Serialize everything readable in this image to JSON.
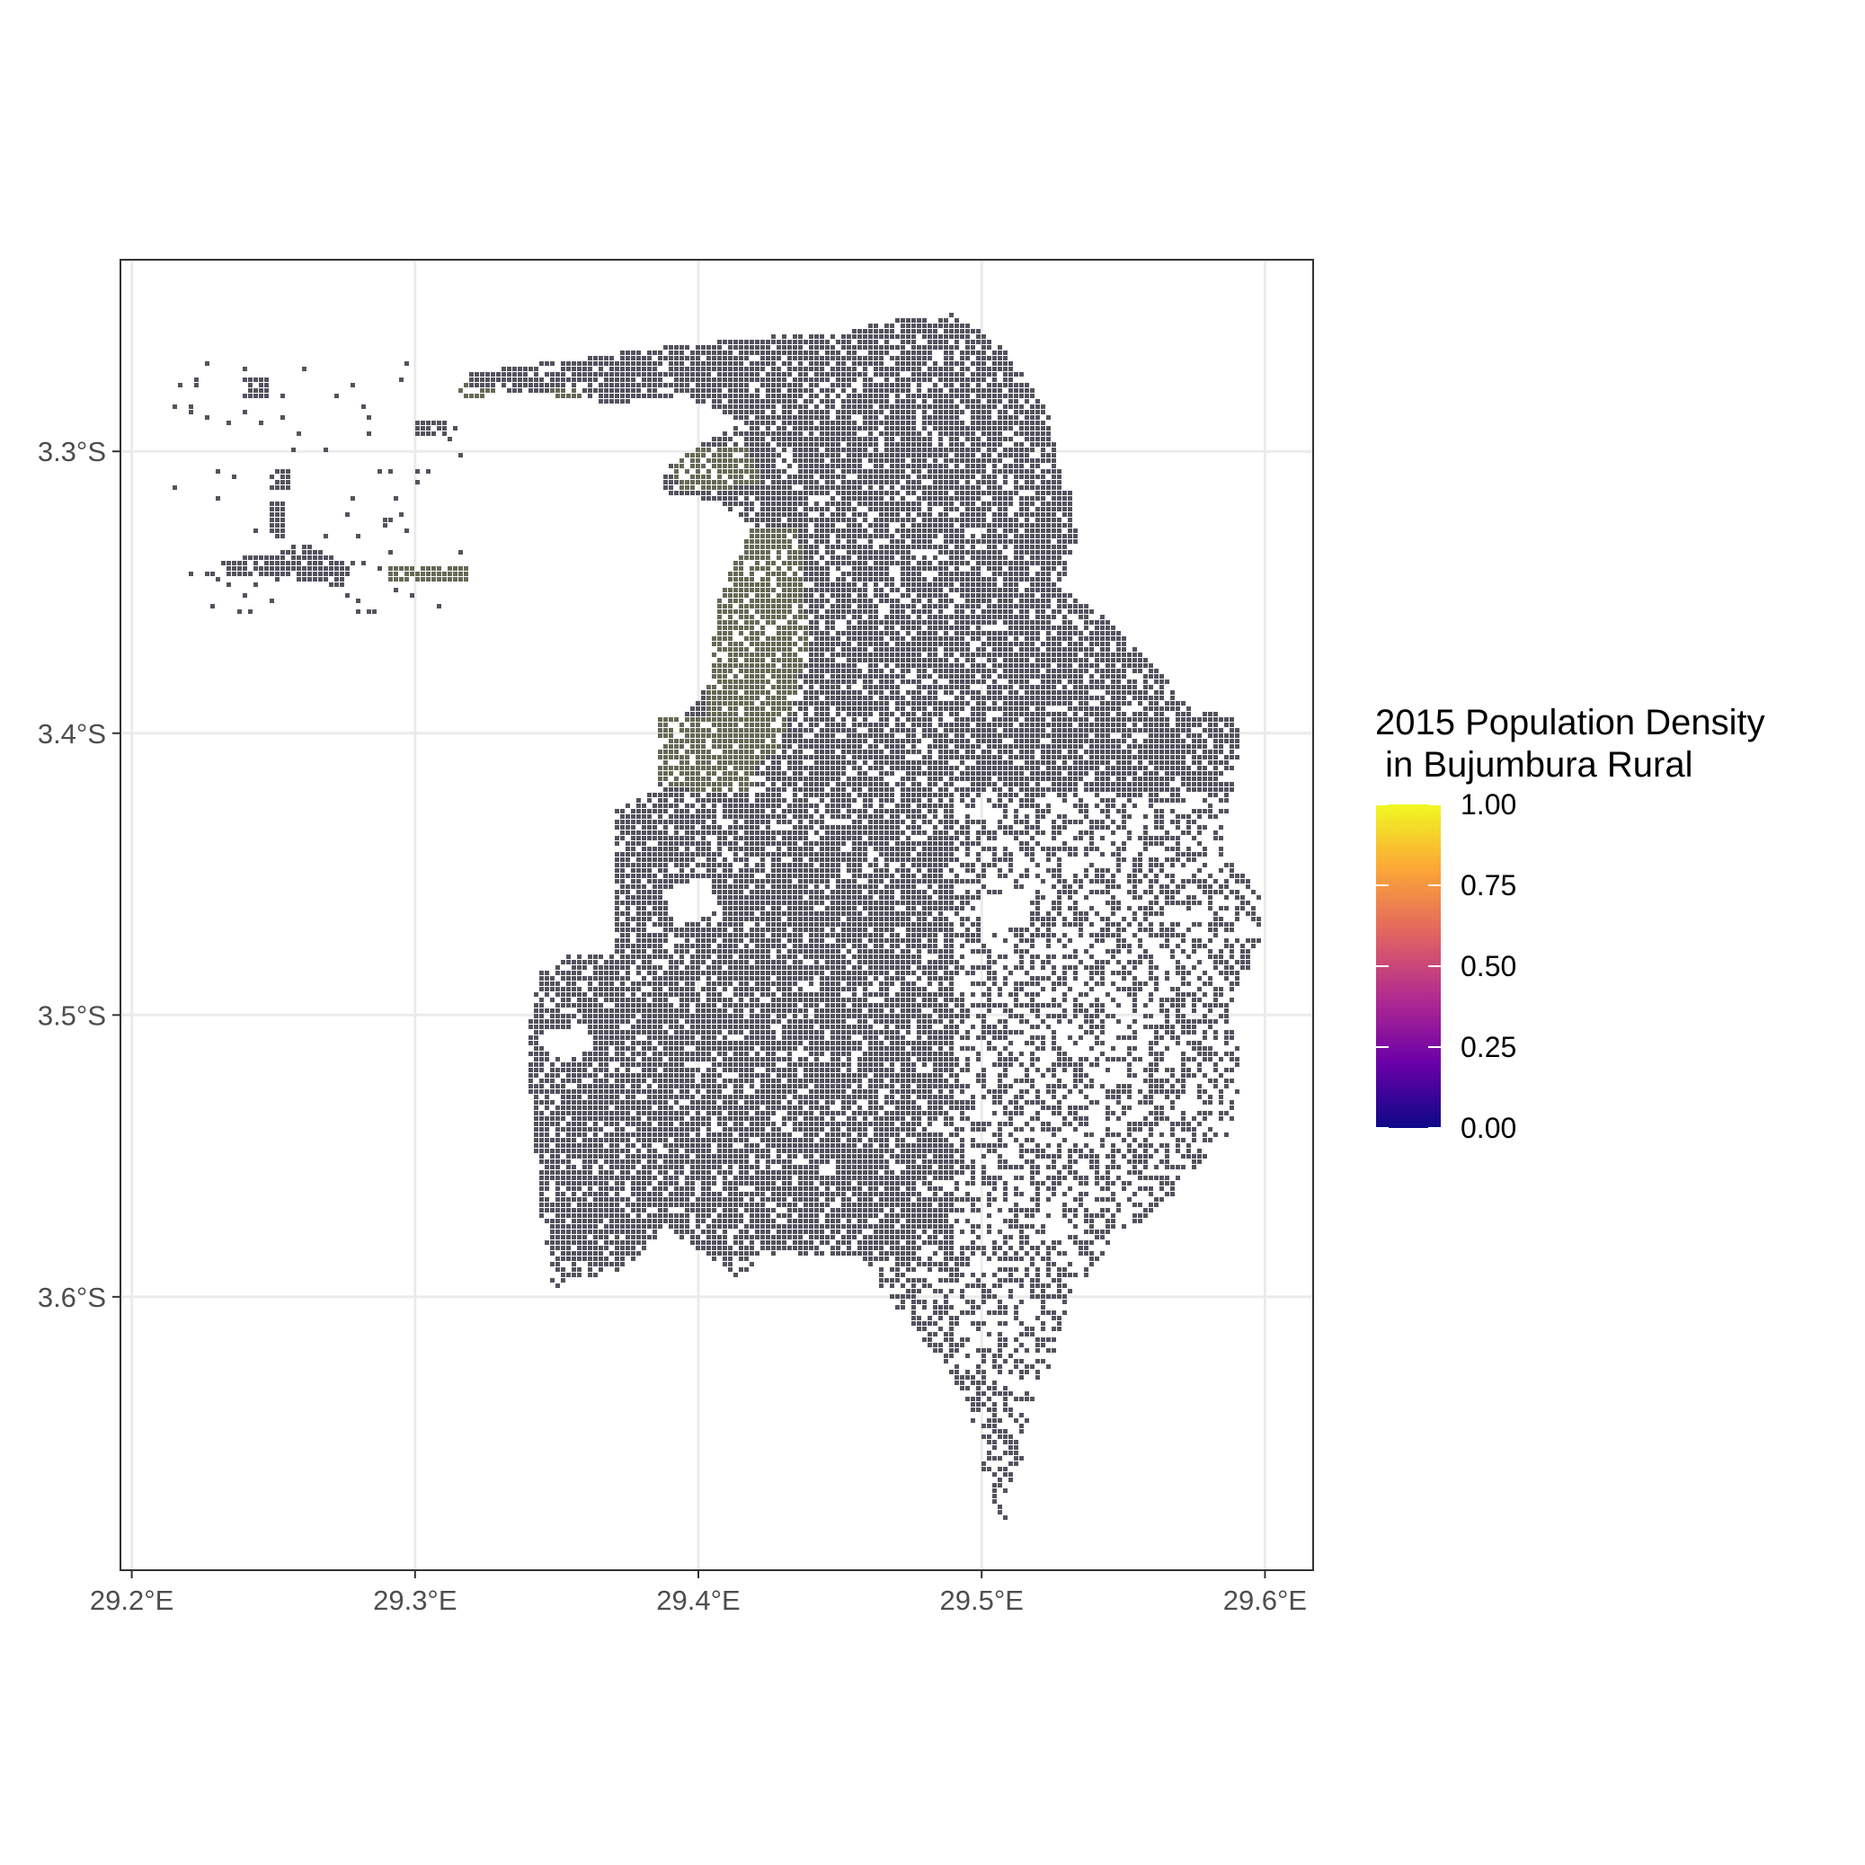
{
  "chart_data": {
    "type": "raster-map",
    "region": "Bujumbura Rural",
    "x_axis": {
      "range": [
        29.196,
        29.617
      ],
      "ticks": [
        {
          "value": 29.2,
          "label": "29.2°E"
        },
        {
          "value": 29.3,
          "label": "29.3°E"
        },
        {
          "value": 29.4,
          "label": "29.4°E"
        },
        {
          "value": 29.5,
          "label": "29.5°E"
        },
        {
          "value": 29.6,
          "label": "29.6°E"
        }
      ]
    },
    "y_axis": {
      "range": [
        -3.232,
        -3.697
      ],
      "ticks": [
        {
          "value": -3.3,
          "label": "3.3°S"
        },
        {
          "value": -3.4,
          "label": "3.4°S"
        },
        {
          "value": -3.5,
          "label": "3.5°S"
        },
        {
          "value": -3.6,
          "label": "3.6°S"
        }
      ]
    },
    "grid": true,
    "legend": {
      "title_lines": [
        "2015 Population Density",
        " in Bujumbura Rural"
      ],
      "placement": "right",
      "palette": "plasma",
      "min": 0.0,
      "max": 1.0,
      "breaks": [
        {
          "value": 1.0,
          "label": "1.00"
        },
        {
          "value": 0.75,
          "label": "0.75"
        },
        {
          "value": 0.5,
          "label": "0.50"
        },
        {
          "value": 0.25,
          "label": "0.25"
        },
        {
          "value": 0.0,
          "label": "0.00"
        }
      ],
      "colors": [
        "#0d0887",
        "#6a00a8",
        "#b12a90",
        "#e16462",
        "#fca636",
        "#f0f921"
      ]
    },
    "fill_colors": {
      "dominant": "#55525e",
      "greenish": "#656a55"
    }
  }
}
